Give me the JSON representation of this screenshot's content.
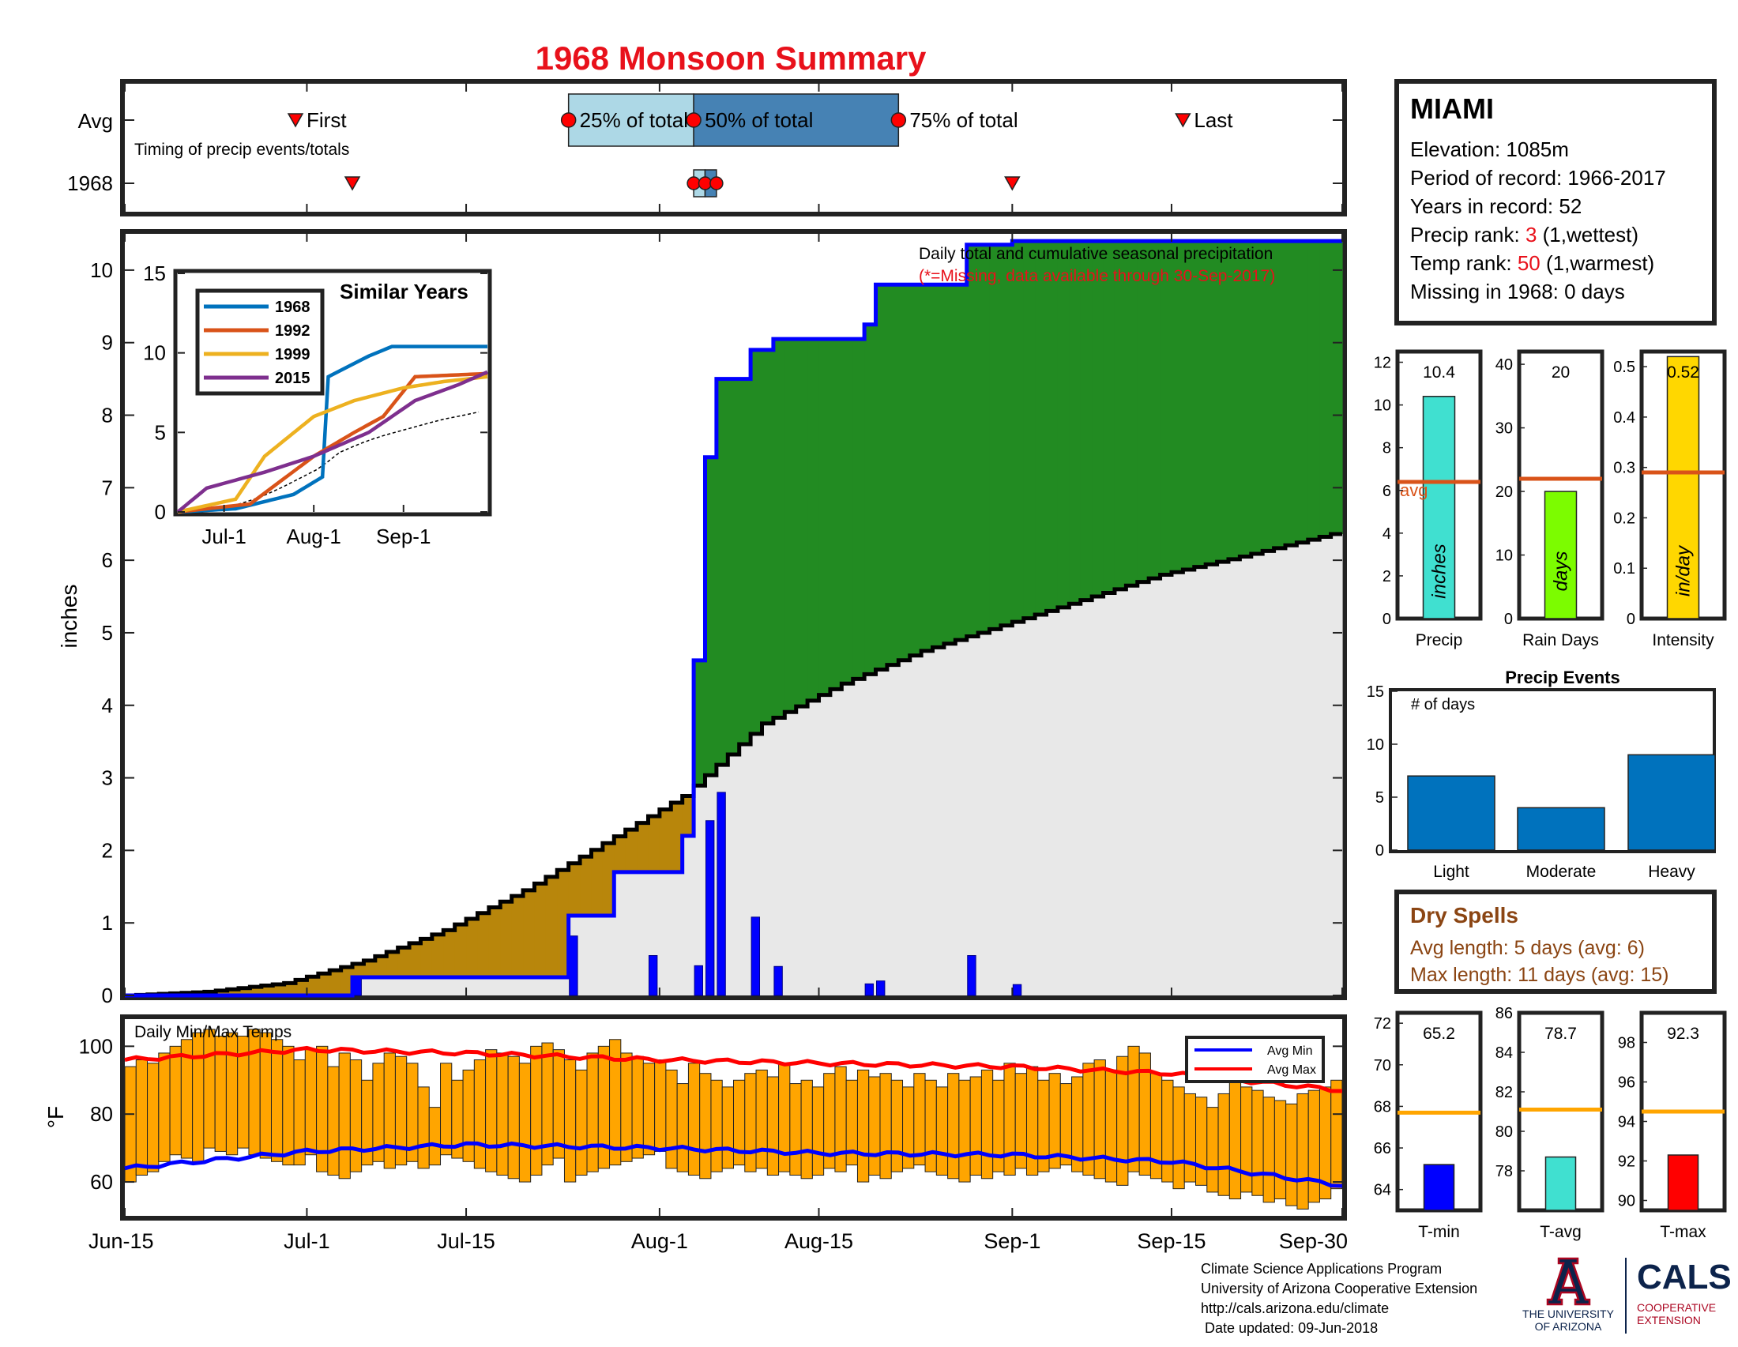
{
  "title": "1968 Monsoon Summary",
  "timing": {
    "row_labels": [
      "Avg",
      "1968"
    ],
    "caption": "Timing of precip events/totals",
    "first_label": "First",
    "last_label": "Last",
    "q25_label": "25% of total",
    "q50_label": "50% of total",
    "q75_label": "75% of total",
    "avg": {
      "first": "Jun-30",
      "q25": "Jul-24",
      "q50": "Aug-4",
      "q75": "Aug-22",
      "last": "Sep-16"
    },
    "year": {
      "first": "Jul-5",
      "q25": "Aug-4",
      "q50": "Aug-5",
      "q75": "Aug-6",
      "last": "Sep-1"
    }
  },
  "station": {
    "name": "MIAMI",
    "elevation": "Elevation: 1085m",
    "period": "Period of record: 1966-2017",
    "years": "Years in record: 52",
    "precip_rank_prefix": "Precip rank: ",
    "precip_rank_value": "3",
    "precip_rank_suffix": " (1,wettest)",
    "temp_rank_prefix": "Temp rank: ",
    "temp_rank_value": "50",
    "temp_rank_suffix": " (1,warmest)",
    "missing": "Missing in 1968: 0 days"
  },
  "main_chart": {
    "annotation": "Daily total and cumulative seasonal precipitation",
    "missing_note": "(*=Missing, data available through 30-Sep-2017)",
    "ylabel": "inches",
    "ylim": [
      0,
      10.5
    ],
    "yticks": [
      "0",
      "1",
      "2",
      "3",
      "4",
      "5",
      "6",
      "7",
      "8",
      "9",
      "10"
    ],
    "xticks": [
      "Jun-15",
      "Jul-1",
      "Jul-15",
      "Aug-1",
      "Aug-15",
      "Sep-1",
      "Sep-15",
      "Sep-30"
    ]
  },
  "similar_years": {
    "title": "Similar Years",
    "yticks": [
      "0",
      "5",
      "10",
      "15"
    ],
    "xticks": [
      "Jul-1",
      "Aug-1",
      "Sep-1"
    ],
    "series": [
      {
        "name": "1968",
        "color": "#0072BD"
      },
      {
        "name": "1992",
        "color": "#D95319"
      },
      {
        "name": "1999",
        "color": "#EDB120"
      },
      {
        "name": "2015",
        "color": "#7E2F8E"
      }
    ]
  },
  "temp_chart": {
    "title": "Daily Min/Max Temps",
    "ylabel": "°F",
    "ylim": [
      50,
      108
    ],
    "yticks": [
      "60",
      "80",
      "100"
    ],
    "legend": [
      "Avg Min",
      "Avg Max"
    ]
  },
  "mini_bars": {
    "avg_label": "avg",
    "items": [
      {
        "label": "Precip",
        "unit": "inches",
        "value_text": "10.4",
        "value": 10.4,
        "avg": 6.4,
        "ymin": 0,
        "ymax": 12.5,
        "ticks": [
          "0",
          "2",
          "4",
          "6",
          "8",
          "10",
          "12"
        ],
        "tick_values": [
          0,
          2,
          4,
          6,
          8,
          10,
          12
        ],
        "color": "#40E0D0"
      },
      {
        "label": "Rain Days",
        "unit": "days",
        "value_text": "20",
        "value": 20,
        "avg": 22,
        "ymin": 0,
        "ymax": 42,
        "ticks": [
          "0",
          "10",
          "20",
          "30",
          "40"
        ],
        "tick_values": [
          0,
          10,
          20,
          30,
          40
        ],
        "color": "#7CFC00"
      },
      {
        "label": "Intensity",
        "unit": "in/day",
        "value_text": "0.52",
        "value": 0.52,
        "avg": 0.29,
        "ymin": 0,
        "ymax": 0.53,
        "ticks": [
          "0",
          "0.1",
          "0.2",
          "0.3",
          "0.4",
          "0.5"
        ],
        "tick_values": [
          0,
          0.1,
          0.2,
          0.3,
          0.4,
          0.5
        ],
        "color": "#FFD700"
      }
    ]
  },
  "precip_events": {
    "title": "Precip Events",
    "ylabel": "# of days",
    "yticks": [
      "0",
      "5",
      "10",
      "15"
    ],
    "categories": [
      "Light",
      "Moderate",
      "Heavy"
    ],
    "values": [
      7,
      4,
      9
    ]
  },
  "dry_spells": {
    "title": "Dry Spells",
    "avg_length": "Avg length: 5 days (avg: 6)",
    "max_length": "Max length: 11 days (avg: 15)"
  },
  "temp_bars": {
    "items": [
      {
        "label": "T-min",
        "value_text": "65.2",
        "value": 65.2,
        "avg": 67.7,
        "ymin": 63,
        "ymax": 72.5,
        "ticks": [
          "64",
          "66",
          "68",
          "70",
          "72"
        ],
        "tick_values": [
          64,
          66,
          68,
          70,
          72
        ],
        "color": "#0000FF"
      },
      {
        "label": "T-avg",
        "value_text": "78.7",
        "value": 78.7,
        "avg": 81.1,
        "ymin": 76,
        "ymax": 86,
        "ticks": [
          "78",
          "80",
          "82",
          "84",
          "86"
        ],
        "tick_values": [
          78,
          80,
          82,
          84,
          86
        ],
        "color": "#40E0D0"
      },
      {
        "label": "T-max",
        "value_text": "92.3",
        "value": 92.3,
        "avg": 94.5,
        "ymin": 89.5,
        "ymax": 99.5,
        "ticks": [
          "90",
          "92",
          "94",
          "96",
          "98"
        ],
        "tick_values": [
          90,
          92,
          94,
          96,
          98
        ],
        "color": "#FF0000"
      }
    ]
  },
  "footer": {
    "line1": "Climate Science Applications Program",
    "line2": "University of Arizona Cooperative Extension",
    "line3": "http://cals.arizona.edu/climate",
    "line4": " Date updated: 09-Jun-2018",
    "ua_line1": "THE UNIVERSITY",
    "ua_line2": "OF ARIZONA",
    "cals": "CALS",
    "coop1": "COOPERATIVE",
    "coop2": "EXTENSION"
  },
  "chart_data": [
    {
      "type": "area",
      "title": "Daily total and cumulative seasonal precipitation",
      "ylabel": "inches",
      "x_range": [
        "Jun-15",
        "Sep-30"
      ],
      "ylim": [
        0,
        10.5
      ],
      "series": [
        {
          "name": "",
          "x": [
            "Jun-15",
            "Jun-22",
            "Jun-29",
            "Jul-6",
            "Jul-13",
            "Jul-20",
            "Jul-27",
            "Aug-3",
            "Aug-10",
            "Aug-17",
            "Aug-24",
            "Aug-31",
            "Sep-7",
            "Sep-14",
            "Sep-21",
            "Sep-30"
          ],
          "values": [
            0,
            0.05,
            0.17,
            0.48,
            0.9,
            1.45,
            2.1,
            2.75,
            3.75,
            4.3,
            4.75,
            5.1,
            5.45,
            5.8,
            6.05,
            6.4
          ]
        },
        {
          "name": "",
          "x": [
            "Jun-15",
            "Jul-5",
            "Jul-24",
            "Jul-28",
            "Aug-3",
            "Aug-4",
            "Aug-5",
            "Aug-6",
            "Aug-9",
            "Aug-11",
            "Aug-19",
            "Aug-20",
            "Aug-28",
            "Sep-1",
            "Sep-30"
          ],
          "values": [
            0,
            0.25,
            1.1,
            1.7,
            2.2,
            4.62,
            7.42,
            8.5,
            8.9,
            9.05,
            9.25,
            9.8,
            10.35,
            10.4,
            10.4
          ]
        },
        {
          "name": "",
          "x": [
            "Jul-5",
            "Jul-24",
            "Jul-31",
            "Aug-4",
            "Aug-5",
            "Aug-6",
            "Aug-9",
            "Aug-11",
            "Aug-19",
            "Aug-20",
            "Aug-28",
            "Sep-1"
          ],
          "values": [
            0.25,
            0.82,
            0.55,
            0.41,
            2.41,
            2.8,
            1.08,
            0.4,
            0.16,
            0.2,
            0.55,
            0.15
          ]
        }
      ]
    },
    {
      "type": "line",
      "title": "Similar Years",
      "x_range": [
        "Jun-15",
        "Sep-30"
      ],
      "ylim": [
        0,
        15
      ],
      "series": [
        {
          "name": "1968",
          "x": [
            "Jun-15",
            "Jul-5",
            "Jul-25",
            "Aug-4",
            "Aug-6",
            "Aug-20",
            "Aug-28",
            "Sep-30"
          ],
          "values": [
            0,
            0.2,
            1.1,
            2.2,
            8.5,
            9.8,
            10.4,
            10.4
          ]
        },
        {
          "name": "1992",
          "x": [
            "Jun-15",
            "Jul-10",
            "Aug-1",
            "Aug-15",
            "Aug-25",
            "Sep-5",
            "Sep-30"
          ],
          "values": [
            0,
            0.5,
            3.5,
            5.0,
            6.0,
            8.5,
            8.7
          ]
        },
        {
          "name": "1999",
          "x": [
            "Jun-15",
            "Jul-5",
            "Jul-15",
            "Aug-1",
            "Aug-15",
            "Sep-1",
            "Sep-15",
            "Sep-30"
          ],
          "values": [
            0,
            0.8,
            3.5,
            6.0,
            7.0,
            7.8,
            8.2,
            8.5
          ]
        },
        {
          "name": "2015",
          "x": [
            "Jun-15",
            "Jun-25",
            "Jul-15",
            "Aug-1",
            "Aug-20",
            "Sep-5",
            "Sep-20",
            "Sep-30"
          ],
          "values": [
            0,
            1.5,
            2.5,
            3.5,
            5.0,
            7.0,
            8.0,
            8.8
          ]
        }
      ]
    },
    {
      "type": "bar",
      "title": "Daily Min/Max Temps",
      "ylabel": "°F",
      "x_range": [
        "Jun-15",
        "Sep-30"
      ],
      "ylim": [
        50,
        108
      ],
      "series": [
        {
          "name": "",
          "values": [
            94,
            96,
            95,
            98,
            100,
            102,
            104,
            105,
            103,
            104,
            103,
            105,
            104,
            102,
            100,
            96,
            99,
            100,
            94,
            98,
            96,
            90,
            95,
            98,
            97,
            95,
            88,
            82,
            95,
            90,
            93,
            96,
            99,
            98,
            97,
            95,
            100,
            101,
            99,
            96,
            93,
            98,
            100,
            102,
            98,
            97,
            95,
            96,
            93,
            89,
            95,
            92,
            90,
            88,
            90,
            92,
            93,
            91,
            95,
            89,
            90,
            88,
            92,
            94,
            90,
            93,
            91,
            92,
            90,
            88,
            92,
            90,
            88,
            92,
            90,
            91,
            93,
            90,
            95,
            92,
            94,
            90,
            92,
            89,
            91,
            95,
            96,
            93,
            97,
            100,
            98,
            92,
            90,
            88,
            86,
            85,
            82,
            86,
            90,
            88,
            87,
            85,
            84,
            83,
            86,
            87,
            88,
            90
          ]
        },
        {
          "name": "",
          "values": [
            60,
            62,
            63,
            66,
            68,
            67,
            66,
            70,
            69,
            68,
            70,
            68,
            67,
            66,
            65,
            65,
            68,
            63,
            62,
            61,
            63,
            65,
            66,
            64,
            65,
            66,
            64,
            65,
            68,
            67,
            66,
            64,
            63,
            62,
            61,
            60,
            62,
            65,
            67,
            60,
            62,
            63,
            64,
            65,
            66,
            67,
            68,
            69,
            64,
            63,
            62,
            61,
            63,
            64,
            65,
            63,
            64,
            62,
            63,
            62,
            61,
            62,
            64,
            63,
            65,
            60,
            62,
            61,
            63,
            64,
            65,
            63,
            62,
            61,
            60,
            62,
            61,
            63,
            62,
            64,
            62,
            63,
            64,
            65,
            63,
            62,
            61,
            60,
            59,
            63,
            62,
            61,
            60,
            58,
            60,
            59,
            57,
            56,
            55,
            57,
            56,
            54,
            55,
            53,
            52,
            54,
            55,
            58
          ]
        },
        {
          "name": "Avg Min",
          "x": [
            "Jun-15",
            "Jul-1",
            "Jul-15",
            "Aug-1",
            "Aug-15",
            "Sep-1",
            "Sep-15",
            "Sep-30"
          ],
          "values": [
            64,
            69,
            71,
            70,
            68.5,
            68,
            66,
            59
          ]
        },
        {
          "name": "Avg Max",
          "x": [
            "Jun-15",
            "Jul-1",
            "Jul-15",
            "Aug-1",
            "Aug-15",
            "Sep-1",
            "Sep-15",
            "Sep-30"
          ],
          "values": [
            96,
            99,
            98,
            96,
            95,
            94,
            92,
            87
          ]
        }
      ]
    },
    {
      "type": "bar",
      "categories": [
        "Precip",
        "Rain Days",
        "Intensity"
      ],
      "values": [
        10.4,
        20,
        0.52
      ],
      "avg": [
        6.4,
        22,
        0.29
      ]
    },
    {
      "type": "bar",
      "title": "Precip Events",
      "ylabel": "# of days",
      "categories": [
        "Light",
        "Moderate",
        "Heavy"
      ],
      "values": [
        7,
        4,
        9
      ],
      "ylim": [
        0,
        15
      ]
    },
    {
      "type": "bar",
      "categories": [
        "T-min",
        "T-avg",
        "T-max"
      ],
      "values": [
        65.2,
        78.7,
        92.3
      ],
      "avg": [
        67.7,
        81.1,
        94.5
      ]
    }
  ]
}
